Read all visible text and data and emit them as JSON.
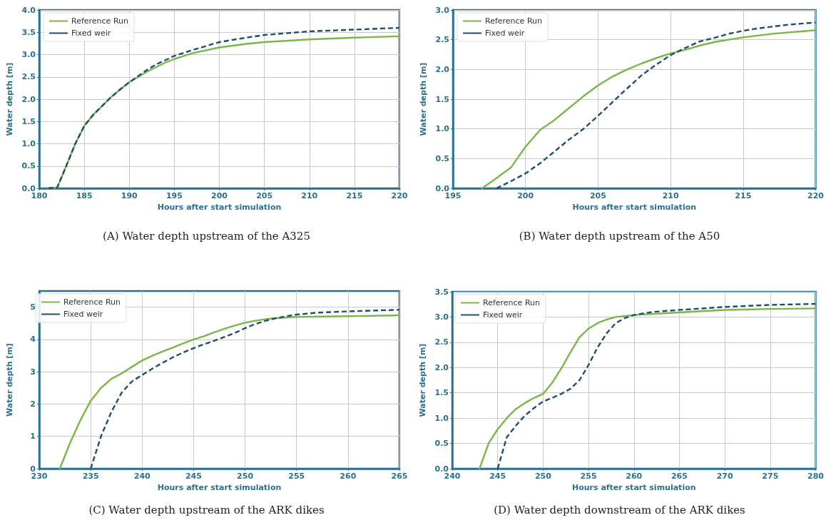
{
  "chart_data": [
    {
      "type": "line",
      "title": "(A) Water depth upstream of the A325",
      "xlabel": "Hours after start simulation",
      "ylabel": "Water depth [m]",
      "xlim": [
        180,
        220
      ],
      "xticks": [
        180,
        185,
        190,
        195,
        200,
        205,
        210,
        215,
        220
      ],
      "ylim": [
        0,
        4
      ],
      "yticks": [
        {
          "value": 0,
          "label": "0.0"
        },
        0.5,
        {
          "value": 1,
          "label": "1.0"
        },
        1.5,
        {
          "value": 2,
          "label": "2.0"
        },
        2.5,
        {
          "value": 3,
          "label": "3.0"
        },
        3.5,
        {
          "value": 4,
          "label": "4.0"
        }
      ],
      "grid": true,
      "legend": "top left",
      "marker": "none",
      "series": [
        {
          "name": "Reference Run",
          "color": "#7ab648",
          "line_style": "solid",
          "x": [
            181,
            182,
            183,
            184,
            185,
            186,
            187,
            188,
            189,
            190,
            191,
            192,
            193,
            194,
            195,
            197,
            200,
            203,
            205,
            210,
            215,
            220
          ],
          "values": [
            0,
            0.02,
            0.5,
            1.0,
            1.4,
            1.65,
            1.85,
            2.05,
            2.22,
            2.38,
            2.5,
            2.62,
            2.72,
            2.82,
            2.9,
            3.03,
            3.16,
            3.24,
            3.28,
            3.34,
            3.38,
            3.41
          ]
        },
        {
          "name": "Fixed weir",
          "color": "#1f4e6e",
          "line_style": "dashed",
          "x": [
            181,
            182,
            183,
            184,
            185,
            186,
            187,
            188,
            189,
            190,
            191,
            192,
            193,
            195,
            197,
            200,
            203,
            205,
            210,
            215,
            220
          ],
          "values": [
            0,
            0.02,
            0.5,
            1.0,
            1.4,
            1.65,
            1.85,
            2.05,
            2.22,
            2.38,
            2.52,
            2.66,
            2.78,
            2.97,
            3.1,
            3.28,
            3.38,
            3.44,
            3.52,
            3.56,
            3.6
          ]
        }
      ]
    },
    {
      "type": "line",
      "title": "(B) Water depth upstream of the A50",
      "xlabel": "Hours after start simulation",
      "ylabel": "Water depth [m]",
      "xlim": [
        195,
        220
      ],
      "xticks": [
        195,
        200,
        205,
        210,
        215,
        220
      ],
      "ylim": [
        0,
        3
      ],
      "yticks": [
        {
          "value": 0,
          "label": "0.0"
        },
        0.5,
        {
          "value": 1,
          "label": "1.0"
        },
        1.5,
        {
          "value": 2,
          "label": "2.0"
        },
        2.5,
        {
          "value": 3,
          "label": "3.0"
        }
      ],
      "grid": true,
      "legend": "top left",
      "marker": "none",
      "series": [
        {
          "name": "Reference Run",
          "color": "#7ab648",
          "line_style": "solid",
          "x": [
            197,
            198,
            199,
            200,
            201,
            202,
            203,
            204,
            205,
            206,
            207,
            208,
            209,
            210,
            211,
            212,
            213,
            214,
            215,
            216,
            217,
            218,
            219,
            220
          ],
          "values": [
            0,
            0.17,
            0.35,
            0.7,
            0.98,
            1.15,
            1.35,
            1.55,
            1.73,
            1.88,
            2.0,
            2.1,
            2.19,
            2.27,
            2.33,
            2.4,
            2.46,
            2.5,
            2.54,
            2.57,
            2.6,
            2.62,
            2.64,
            2.66
          ]
        },
        {
          "name": "Fixed weir",
          "color": "#1f4e6e",
          "line_style": "dashed",
          "x": [
            198,
            199,
            200,
            201,
            202,
            203,
            204,
            205,
            206,
            207,
            208,
            209,
            210,
            211,
            212,
            213,
            214,
            215,
            216,
            217,
            218,
            219,
            220
          ],
          "values": [
            0,
            0.12,
            0.25,
            0.42,
            0.62,
            0.82,
            1.0,
            1.22,
            1.45,
            1.68,
            1.9,
            2.08,
            2.24,
            2.36,
            2.47,
            2.53,
            2.6,
            2.65,
            2.69,
            2.72,
            2.75,
            2.77,
            2.79
          ]
        }
      ]
    },
    {
      "type": "line",
      "title": "(C) Water depth upstream of the ARK dikes",
      "xlabel": "Hours after start simulation",
      "ylabel": "Water depth [m]",
      "xlim": [
        230,
        265
      ],
      "xticks": [
        230,
        235,
        240,
        245,
        250,
        255,
        260,
        265
      ],
      "ylim": [
        0,
        5.5
      ],
      "yticks": [
        0,
        1,
        2,
        3,
        4,
        5
      ],
      "grid": true,
      "legend": "top left",
      "marker": "none",
      "series": [
        {
          "name": "Reference Run",
          "color": "#7ab648",
          "line_style": "solid",
          "x": [
            232,
            233,
            234,
            235,
            236,
            237,
            238,
            239,
            240,
            241,
            242,
            243,
            244,
            245,
            246,
            247,
            248,
            249,
            250,
            251,
            252,
            253,
            255,
            260,
            265
          ],
          "values": [
            0,
            0.8,
            1.5,
            2.1,
            2.5,
            2.78,
            2.95,
            3.15,
            3.35,
            3.5,
            3.63,
            3.75,
            3.88,
            4.0,
            4.1,
            4.22,
            4.33,
            4.43,
            4.52,
            4.58,
            4.63,
            4.66,
            4.7,
            4.72,
            4.75
          ]
        },
        {
          "name": "Fixed weir",
          "color": "#1f4e6e",
          "line_style": "dashed",
          "x": [
            235,
            236,
            237,
            238,
            239,
            240,
            241,
            242,
            243,
            244,
            245,
            246,
            247,
            248,
            249,
            250,
            251,
            252,
            253,
            254,
            255,
            257,
            260,
            265
          ],
          "values": [
            0,
            1.0,
            1.75,
            2.35,
            2.7,
            2.9,
            3.1,
            3.28,
            3.45,
            3.6,
            3.73,
            3.85,
            3.96,
            4.08,
            4.2,
            4.35,
            4.48,
            4.58,
            4.66,
            4.72,
            4.77,
            4.83,
            4.87,
            4.92
          ]
        }
      ]
    },
    {
      "type": "line",
      "title": "(D) Water depth downstream of the ARK dikes",
      "xlabel": "Hours after start simulation",
      "ylabel": "Water depth [m]",
      "xlim": [
        240,
        280
      ],
      "xticks": [
        240,
        245,
        250,
        255,
        260,
        265,
        270,
        275,
        280
      ],
      "ylim": [
        0,
        3.5
      ],
      "yticks": [
        {
          "value": 0,
          "label": "0.0"
        },
        0.5,
        {
          "value": 1,
          "label": "1.0"
        },
        1.5,
        {
          "value": 2,
          "label": "2.0"
        },
        2.5,
        {
          "value": 3,
          "label": "3.0"
        },
        3.5
      ],
      "grid": true,
      "legend": "top left",
      "marker": "none",
      "series": [
        {
          "name": "Reference Run",
          "color": "#7ab648",
          "line_style": "solid",
          "x": [
            243,
            244,
            245,
            246,
            247,
            248,
            249,
            250,
            251,
            252,
            253,
            254,
            255,
            256,
            257,
            258,
            260,
            265,
            270,
            275,
            280
          ],
          "values": [
            0,
            0.5,
            0.78,
            1.0,
            1.18,
            1.3,
            1.4,
            1.48,
            1.7,
            1.98,
            2.3,
            2.6,
            2.77,
            2.88,
            2.95,
            3.0,
            3.04,
            3.09,
            3.14,
            3.16,
            3.17
          ]
        },
        {
          "name": "Fixed weir",
          "color": "#1f4e6e",
          "line_style": "dashed",
          "x": [
            245,
            246,
            247,
            248,
            249,
            250,
            251,
            252,
            253,
            254,
            255,
            256,
            257,
            258,
            259,
            260,
            262,
            265,
            270,
            275,
            280
          ],
          "values": [
            0,
            0.62,
            0.85,
            1.05,
            1.2,
            1.33,
            1.4,
            1.48,
            1.58,
            1.75,
            2.05,
            2.4,
            2.68,
            2.88,
            2.98,
            3.04,
            3.1,
            3.14,
            3.2,
            3.24,
            3.26
          ]
        }
      ]
    }
  ]
}
